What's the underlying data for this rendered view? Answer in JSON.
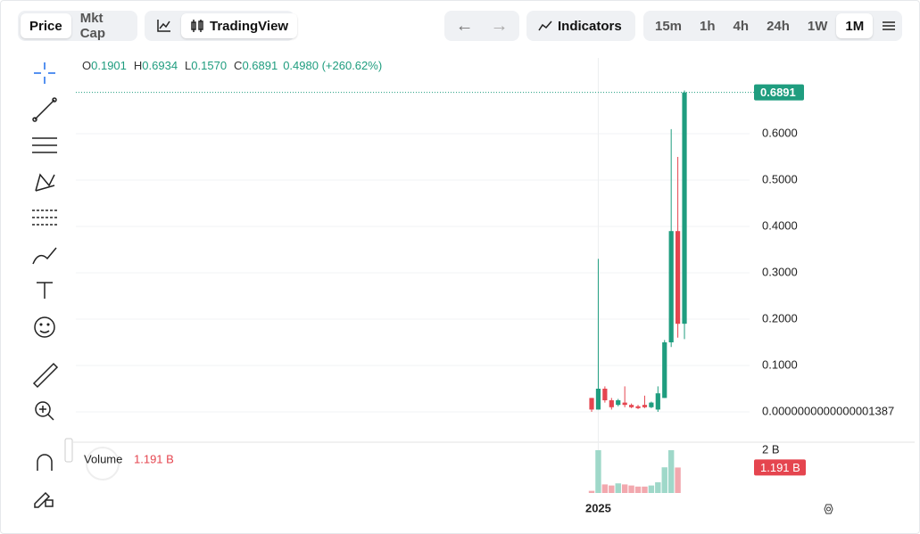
{
  "toolbar": {
    "tabs": [
      "Price",
      "Mkt Cap"
    ],
    "tradingview": "TradingView",
    "indicators": "Indicators",
    "intervals": [
      "15m",
      "1h",
      "4h",
      "24h",
      "1W",
      "1M"
    ]
  },
  "legend": {
    "items": [
      {
        "key": "O",
        "value": "0.1901"
      },
      {
        "key": "H",
        "value": "0.6934"
      },
      {
        "key": "L",
        "value": "0.1570"
      },
      {
        "key": "C",
        "value": "0.6891"
      }
    ],
    "change": "0.4980 (+260.62%)"
  },
  "volume_legend": {
    "label": "Volume",
    "value": "1.191 B"
  },
  "chart_data": [
    {
      "type": "candlestick",
      "categories": [
        null,
        "2025",
        null,
        null,
        null,
        null,
        null,
        null,
        null,
        null,
        null,
        null,
        null,
        null,
        null
      ],
      "open": [
        0.03,
        0.005,
        0.05,
        0.025,
        0.015,
        0.02,
        0.015,
        0.012,
        0.015,
        0.01,
        0.005,
        0.03,
        0.15,
        0.39,
        0.1901
      ],
      "high": [
        0.03,
        0.33,
        0.055,
        0.03,
        0.028,
        0.055,
        0.018,
        0.015,
        0.035,
        0.022,
        0.055,
        0.155,
        0.61,
        0.55,
        0.6934
      ],
      "low": [
        0,
        0.005,
        0.02,
        0.005,
        0.012,
        0.01,
        0.008,
        0.006,
        0.008,
        0.008,
        0,
        0.03,
        0.14,
        0.16,
        0.157
      ],
      "close": [
        0.005,
        0.05,
        0.025,
        0.01,
        0.025,
        0.015,
        0.01,
        0.008,
        0.01,
        0.02,
        0.04,
        0.15,
        0.39,
        0.19,
        0.6891
      ],
      "up_color": "#1f9d7f",
      "down_color": "#e5454f",
      "last_price_label": "0.6891",
      "ylim": [
        -0.05,
        0.7635
      ],
      "yticks": [
        {
          "value": 1.387e-16,
          "label": "0.0000000000000001387"
        },
        {
          "value": 0.1,
          "label": "0.1000"
        },
        {
          "value": 0.2,
          "label": "0.2000"
        },
        {
          "value": 0.3,
          "label": "0.3000"
        },
        {
          "value": 0.4,
          "label": "0.4000"
        },
        {
          "value": 0.5,
          "label": "0.5000"
        },
        {
          "value": 0.6,
          "label": "0.6000"
        }
      ],
      "grid": true
    },
    {
      "type": "bar",
      "values": [
        0.1,
        2.0,
        0.4,
        0.35,
        0.45,
        0.4,
        0.35,
        0.3,
        0.3,
        0.35,
        0.5,
        1.2,
        2.0,
        1.191,
        null
      ],
      "value_labels": [
        null,
        null,
        null,
        null,
        null,
        null,
        null,
        null,
        null,
        null,
        null,
        null,
        null,
        "1.191 B",
        null
      ],
      "colors": [
        "#f2a8ae",
        "#9fd8c9",
        "#f2a8ae",
        "#f2a8ae",
        "#9fd8c9",
        "#f2a8ae",
        "#f2a8ae",
        "#f2a8ae",
        "#f2a8ae",
        "#9fd8c9",
        "#9fd8c9",
        "#9fd8c9",
        "#9fd8c9",
        "#f2a8ae",
        "#9fd8c9"
      ],
      "ylim": [
        0,
        2.333
      ],
      "yticks": [
        {
          "value": 2,
          "label": "2 B"
        }
      ]
    }
  ]
}
